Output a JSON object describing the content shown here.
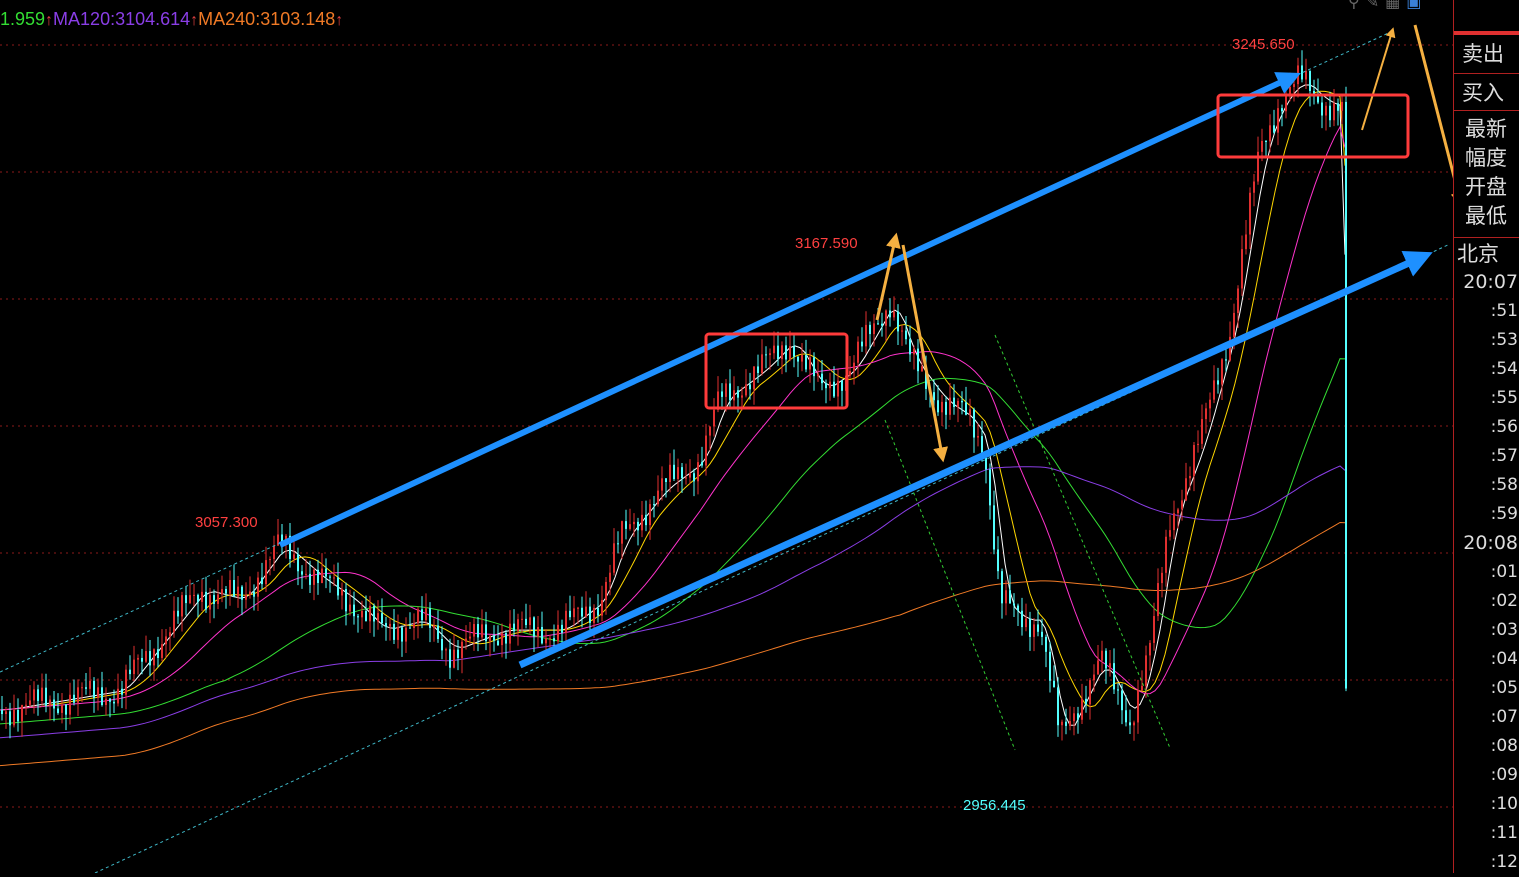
{
  "legend": [
    {
      "text": "1.959",
      "color": "#33dd33"
    },
    {
      "text": "MA120:3104.614",
      "color": "#8a3ee6"
    },
    {
      "text": "MA240:3103.148",
      "color": "#f07a26"
    }
  ],
  "legend_arrow": "↑",
  "toolbar_icons": [
    "search-icon",
    "draw-icon",
    "layout-icon",
    "window-icon"
  ],
  "side_panel": {
    "sell": "卖出",
    "buy": "买入",
    "info": [
      "最新",
      "幅度",
      "开盘",
      "最低"
    ],
    "region": "北京",
    "times": [
      "20:07",
      ":51",
      ":53",
      ":54",
      ":55",
      ":56",
      ":57",
      ":58",
      ":59",
      "20:08",
      ":01",
      ":02",
      ":03",
      ":04",
      ":05",
      ":07",
      ":08",
      ":09",
      ":10",
      ":11",
      ":12"
    ]
  },
  "colors": {
    "background": "#000000",
    "up": "#e03030",
    "down": "#54ffff",
    "trend_arrow": "#1e90ff",
    "swing_arrow": "#f5b041",
    "box": "#ff3b3b",
    "grid": "#8b1a1a"
  },
  "chart_data": {
    "type": "line",
    "title": "",
    "ylim": [
      2940,
      3260
    ],
    "grid": true,
    "series": [
      {
        "values": [
          2987.5,
          2991.3,
          2995.2,
          3014.7,
          3034.1,
          3030.2,
          3051.5,
          3038.0,
          3030.2,
          3018.5,
          3022.4,
          3010.8,
          3018.5,
          3018.5,
          3030.2,
          3053.5,
          3072.9,
          3084.5,
          3107.8,
          3119.5,
          3131.1,
          3111.7,
          3119.5,
          3146.7,
          3123.4,
          3107.8,
          3100.1,
          3088.4,
          3030.2,
          3022.4,
          3022.4,
          2975.8,
          2991.3,
          3006.9,
          2983.6,
          3010.8,
          3061.3,
          3092.3,
          3135.0,
          3204.9,
          3224.2,
          3232.1,
          3224.2,
          3220.4
        ]
      }
    ],
    "annotations": [
      {
        "text": "3057.300",
        "value": 3057.3,
        "color": "#ff4040"
      },
      {
        "text": "3167.590",
        "value": 3167.59,
        "color": "#ff4040"
      },
      {
        "text": "3245.650",
        "value": 3245.65,
        "color": "#ff4040"
      },
      {
        "text": "2956.445",
        "value": 2956.445,
        "color": "#54ffff"
      }
    ]
  }
}
